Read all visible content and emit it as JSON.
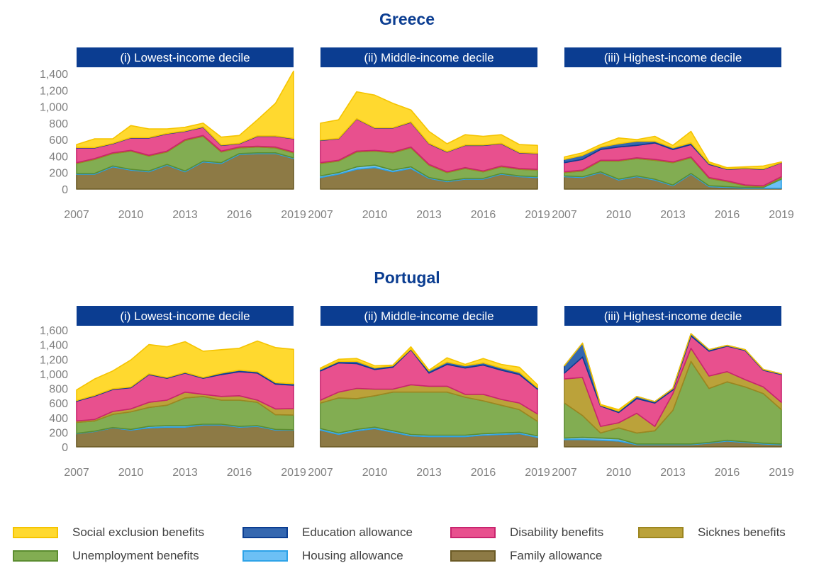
{
  "countries": [
    {
      "title": "Greece",
      "panel_titles": [
        "(i) Lowest-income decile",
        "(ii) Middle-income decile",
        "(iii) Highest-income decile"
      ],
      "y_ticks": [
        "0",
        "200",
        "400",
        "600",
        "800",
        "1,000",
        "1,200",
        "1,400"
      ]
    },
    {
      "title": "Portugal",
      "panel_titles": [
        "(i) Lowest-income decile",
        "(ii) Middle-income decile",
        "(iii) Highest-income decile"
      ],
      "y_ticks": [
        "0",
        "200",
        "400",
        "600",
        "800",
        "1,000",
        "1,200",
        "1,400",
        "1,600"
      ]
    }
  ],
  "x_tick_labels": [
    "2007",
    "2010",
    "2013",
    "2016",
    "2019"
  ],
  "legend": [
    {
      "label": "Social exclusion benefits",
      "fill": "#ffd92f",
      "stroke": "#f5c400"
    },
    {
      "label": "Education allowance",
      "fill": "#3467b0",
      "stroke": "#0b3d91"
    },
    {
      "label": "Disability benefits",
      "fill": "#e8508e",
      "stroke": "#c8246e"
    },
    {
      "label": "Sicknes benefits",
      "fill": "#bba23a",
      "stroke": "#9c8620"
    },
    {
      "label": "Unemployment benefits",
      "fill": "#82ad52",
      "stroke": "#5c8d30"
    },
    {
      "label": "Housing allowance",
      "fill": "#6cc0f5",
      "stroke": "#2ea3e8"
    },
    {
      "label": "Family allowance",
      "fill": "#8d7a45",
      "stroke": "#6b5a25"
    }
  ],
  "colors": {
    "title_blue": "#0b3d91",
    "panel_header_bg": "#0b3d91",
    "axis_text": "#808080"
  },
  "chart_data": [
    {
      "type": "area",
      "country": "Greece",
      "panel": "(i) Lowest-income decile",
      "stacked": true,
      "x": [
        2007,
        2008,
        2009,
        2010,
        2011,
        2012,
        2013,
        2014,
        2015,
        2016,
        2017,
        2018,
        2019
      ],
      "ylim": [
        0,
        1400
      ],
      "xlim": [
        2007,
        2019
      ],
      "series": [
        {
          "name": "Family allowance",
          "values": [
            180,
            180,
            270,
            230,
            210,
            290,
            210,
            330,
            310,
            420,
            430,
            430,
            370
          ]
        },
        {
          "name": "Housing allowance",
          "values": [
            10,
            10,
            10,
            10,
            10,
            10,
            10,
            10,
            10,
            10,
            10,
            10,
            10
          ]
        },
        {
          "name": "Unemployment benefits",
          "values": [
            120,
            170,
            150,
            220,
            180,
            150,
            370,
            300,
            130,
            70,
            70,
            60,
            60
          ]
        },
        {
          "name": "Sicknes benefits",
          "values": [
            10,
            10,
            10,
            10,
            10,
            10,
            10,
            10,
            10,
            10,
            10,
            10,
            10
          ]
        },
        {
          "name": "Disability benefits",
          "values": [
            180,
            130,
            110,
            150,
            210,
            210,
            100,
            100,
            70,
            40,
            120,
            130,
            160
          ]
        },
        {
          "name": "Education allowance",
          "values": [
            5,
            5,
            5,
            5,
            5,
            5,
            5,
            5,
            5,
            5,
            5,
            5,
            5
          ]
        },
        {
          "name": "Social exclusion benefits",
          "values": [
            35,
            105,
            55,
            145,
            105,
            55,
            45,
            45,
            95,
            95,
            195,
            395,
            815
          ]
        }
      ]
    },
    {
      "type": "area",
      "country": "Greece",
      "panel": "(ii) Middle-income decile",
      "stacked": true,
      "x": [
        2007,
        2008,
        2009,
        2010,
        2011,
        2012,
        2013,
        2014,
        2015,
        2016,
        2017,
        2018,
        2019
      ],
      "ylim": [
        0,
        1400
      ],
      "xlim": [
        2007,
        2019
      ],
      "series": [
        {
          "name": "Family allowance",
          "values": [
            140,
            180,
            240,
            260,
            210,
            250,
            130,
            90,
            120,
            120,
            180,
            150,
            140
          ]
        },
        {
          "name": "Housing allowance",
          "values": [
            20,
            20,
            30,
            30,
            20,
            20,
            10,
            10,
            10,
            10,
            10,
            10,
            10
          ]
        },
        {
          "name": "Unemployment benefits",
          "values": [
            150,
            140,
            180,
            170,
            210,
            230,
            150,
            100,
            120,
            80,
            80,
            80,
            80
          ]
        },
        {
          "name": "Sicknes benefits",
          "values": [
            10,
            10,
            10,
            10,
            10,
            10,
            10,
            10,
            10,
            10,
            10,
            10,
            10
          ]
        },
        {
          "name": "Disability benefits",
          "values": [
            270,
            260,
            390,
            270,
            290,
            300,
            250,
            240,
            270,
            310,
            270,
            190,
            190
          ]
        },
        {
          "name": "Education allowance",
          "values": [
            5,
            5,
            5,
            5,
            5,
            5,
            5,
            5,
            5,
            5,
            5,
            5,
            5
          ]
        },
        {
          "name": "Social exclusion benefits",
          "values": [
            205,
            225,
            325,
            395,
            295,
            145,
            145,
            95,
            125,
            105,
            105,
            95,
            95
          ]
        }
      ]
    },
    {
      "type": "area",
      "country": "Greece",
      "panel": "(iii) Highest-income decile",
      "stacked": true,
      "x": [
        2007,
        2008,
        2009,
        2010,
        2011,
        2012,
        2013,
        2014,
        2015,
        2016,
        2017,
        2018,
        2019
      ],
      "ylim": [
        0,
        1400
      ],
      "xlim": [
        2007,
        2019
      ],
      "series": [
        {
          "name": "Family allowance",
          "values": [
            150,
            140,
            200,
            110,
            150,
            110,
            40,
            180,
            30,
            20,
            10,
            10,
            10
          ]
        },
        {
          "name": "Housing allowance",
          "values": [
            10,
            10,
            10,
            10,
            10,
            10,
            10,
            10,
            10,
            10,
            10,
            10,
            110
          ]
        },
        {
          "name": "Unemployment benefits",
          "values": [
            40,
            70,
            130,
            220,
            210,
            230,
            270,
            190,
            90,
            60,
            20,
            10,
            20
          ]
        },
        {
          "name": "Sicknes benefits",
          "values": [
            10,
            10,
            10,
            10,
            10,
            10,
            10,
            10,
            10,
            10,
            10,
            10,
            10
          ]
        },
        {
          "name": "Disability benefits",
          "values": [
            110,
            130,
            130,
            160,
            150,
            200,
            150,
            150,
            160,
            140,
            200,
            200,
            170
          ]
        },
        {
          "name": "Education allowance",
          "values": [
            40,
            50,
            30,
            40,
            50,
            20,
            20,
            20,
            10,
            5,
            5,
            5,
            5
          ]
        },
        {
          "name": "Social exclusion benefits",
          "values": [
            30,
            30,
            30,
            70,
            20,
            60,
            30,
            140,
            20,
            15,
            15,
            35,
            5
          ]
        }
      ]
    },
    {
      "type": "area",
      "country": "Portugal",
      "panel": "(i) Lowest-income decile",
      "stacked": true,
      "x": [
        2007,
        2008,
        2009,
        2010,
        2011,
        2012,
        2013,
        2014,
        2015,
        2016,
        2017,
        2018,
        2019
      ],
      "ylim": [
        0,
        1600
      ],
      "xlim": [
        2007,
        2019
      ],
      "series": [
        {
          "name": "Family allowance",
          "values": [
            180,
            210,
            260,
            230,
            260,
            270,
            270,
            300,
            300,
            270,
            280,
            230,
            230
          ]
        },
        {
          "name": "Housing allowance",
          "values": [
            5,
            5,
            5,
            10,
            20,
            20,
            20,
            10,
            10,
            10,
            10,
            10,
            5
          ]
        },
        {
          "name": "Unemployment benefits",
          "values": [
            150,
            140,
            180,
            240,
            260,
            280,
            380,
            380,
            330,
            360,
            320,
            200,
            200
          ]
        },
        {
          "name": "Sicknes benefits",
          "values": [
            20,
            20,
            40,
            40,
            70,
            70,
            80,
            30,
            50,
            60,
            30,
            80,
            90
          ]
        },
        {
          "name": "Disability benefits",
          "values": [
            270,
            320,
            300,
            290,
            380,
            300,
            260,
            220,
            300,
            330,
            370,
            340,
            320
          ]
        },
        {
          "name": "Education allowance",
          "values": [
            10,
            10,
            10,
            10,
            10,
            10,
            10,
            10,
            20,
            20,
            20,
            20,
            20
          ]
        },
        {
          "name": "Social exclusion benefits",
          "values": [
            145,
            225,
            245,
            370,
            400,
            420,
            420,
            360,
            320,
            300,
            420,
            480,
            470
          ]
        }
      ]
    },
    {
      "type": "area",
      "country": "Portugal",
      "panel": "(ii) Middle-income decile",
      "stacked": true,
      "x": [
        2007,
        2008,
        2009,
        2010,
        2011,
        2012,
        2013,
        2014,
        2015,
        2016,
        2017,
        2018,
        2019
      ],
      "ylim": [
        0,
        1600
      ],
      "xlim": [
        2007,
        2019
      ],
      "series": [
        {
          "name": "Family allowance",
          "values": [
            230,
            170,
            220,
            250,
            200,
            150,
            140,
            140,
            140,
            160,
            170,
            180,
            130
          ]
        },
        {
          "name": "Housing allowance",
          "values": [
            20,
            20,
            20,
            20,
            20,
            20,
            20,
            20,
            20,
            20,
            20,
            20,
            20
          ]
        },
        {
          "name": "Unemployment benefits",
          "values": [
            350,
            480,
            420,
            430,
            530,
            580,
            590,
            590,
            520,
            450,
            380,
            310,
            200
          ]
        },
        {
          "name": "Sicknes benefits",
          "values": [
            40,
            80,
            140,
            90,
            40,
            100,
            80,
            80,
            40,
            90,
            80,
            90,
            100
          ]
        },
        {
          "name": "Disability benefits",
          "values": [
            400,
            400,
            340,
            270,
            300,
            480,
            180,
            300,
            360,
            400,
            400,
            390,
            340
          ]
        },
        {
          "name": "Education allowance",
          "values": [
            20,
            20,
            30,
            20,
            20,
            10,
            30,
            30,
            30,
            30,
            30,
            30,
            20
          ]
        },
        {
          "name": "Social exclusion benefits",
          "values": [
            20,
            30,
            40,
            30,
            10,
            30,
            10,
            60,
            20,
            60,
            50,
            70,
            40
          ]
        }
      ]
    },
    {
      "type": "area",
      "country": "Portugal",
      "panel": "(iii) Highest-income decile",
      "stacked": true,
      "x": [
        2007,
        2008,
        2009,
        2010,
        2011,
        2012,
        2013,
        2014,
        2015,
        2016,
        2017,
        2018,
        2019
      ],
      "ylim": [
        0,
        1600
      ],
      "xlim": [
        2007,
        2019
      ],
      "series": [
        {
          "name": "Family allowance",
          "values": [
            100,
            100,
            90,
            80,
            30,
            30,
            30,
            30,
            50,
            80,
            60,
            40,
            30
          ]
        },
        {
          "name": "Housing allowance",
          "values": [
            20,
            30,
            30,
            30,
            10,
            10,
            10,
            10,
            10,
            10,
            10,
            10,
            10
          ]
        },
        {
          "name": "Unemployment benefits",
          "values": [
            480,
            300,
            70,
            150,
            150,
            180,
            460,
            1130,
            740,
            800,
            750,
            680,
            470
          ]
        },
        {
          "name": "Sicknes benefits",
          "values": [
            330,
            520,
            90,
            70,
            270,
            60,
            230,
            180,
            170,
            140,
            100,
            90,
            100
          ]
        },
        {
          "name": "Disability benefits",
          "values": [
            80,
            280,
            280,
            140,
            200,
            320,
            50,
            170,
            340,
            350,
            400,
            230,
            380
          ]
        },
        {
          "name": "Education allowance",
          "values": [
            100,
            190,
            10,
            20,
            30,
            20,
            20,
            30,
            20,
            10,
            10,
            10,
            10
          ]
        },
        {
          "name": "Social exclusion benefits",
          "values": [
            0,
            0,
            10,
            20,
            0,
            0,
            0,
            0,
            0,
            0,
            0,
            0,
            0
          ]
        }
      ]
    }
  ]
}
